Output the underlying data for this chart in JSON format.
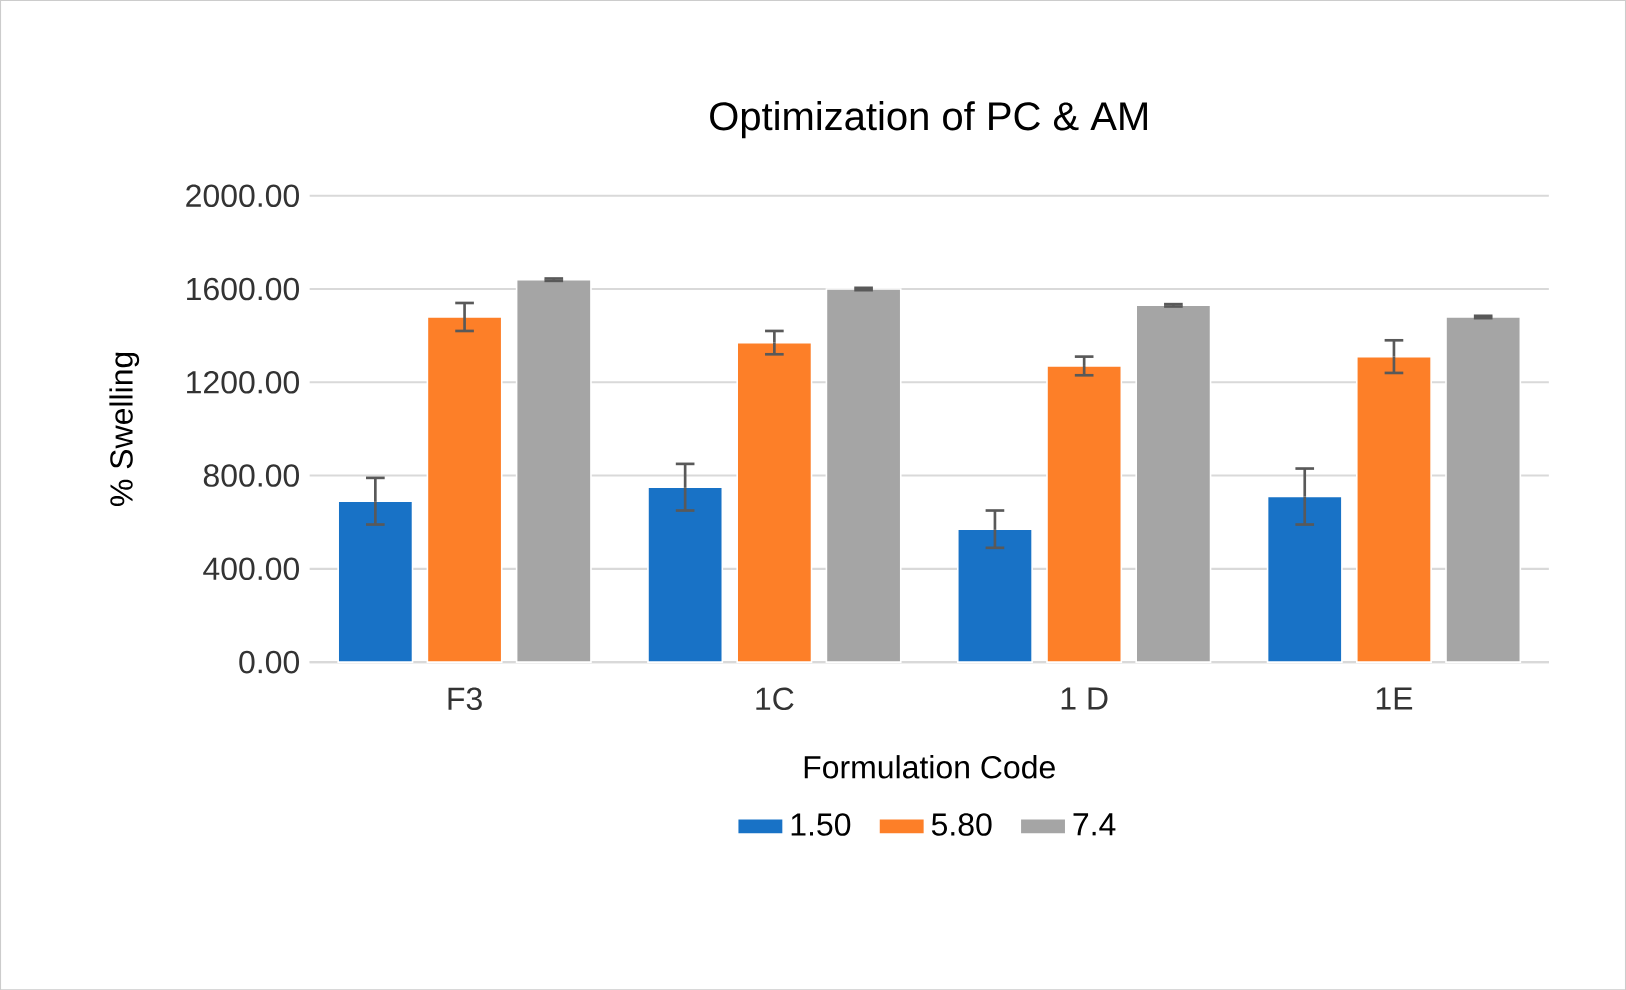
{
  "chart_data": {
    "type": "bar",
    "title": "Optimization of PC & AM",
    "xlabel": "Formulation Code",
    "ylabel": "% Swelling",
    "categories": [
      "F3",
      "1C",
      "1 D",
      "1E"
    ],
    "series": [
      {
        "name": "1.50",
        "color": "#1872c6",
        "values": [
          690,
          750,
          570,
          710
        ],
        "errors": [
          100,
          100,
          80,
          120
        ]
      },
      {
        "name": "5.80",
        "color": "#fd7f28",
        "values": [
          1480,
          1370,
          1270,
          1310
        ],
        "errors": [
          60,
          50,
          40,
          70
        ]
      },
      {
        "name": "7.4",
        "color": "#a5a5a5",
        "values": [
          1640,
          1600,
          1530,
          1480
        ],
        "errors": [
          5,
          5,
          5,
          5
        ]
      }
    ],
    "ylim": [
      0,
      2000
    ],
    "yticks": [
      {
        "value": 0,
        "label": "0.00"
      },
      {
        "value": 400,
        "label": "400.00"
      },
      {
        "value": 800,
        "label": "800.00"
      },
      {
        "value": 1200,
        "label": "1200.00"
      },
      {
        "value": 1600,
        "label": "1600.00"
      },
      {
        "value": 2000,
        "label": "2000.00"
      }
    ],
    "grid": "y",
    "legend": "bottom"
  }
}
